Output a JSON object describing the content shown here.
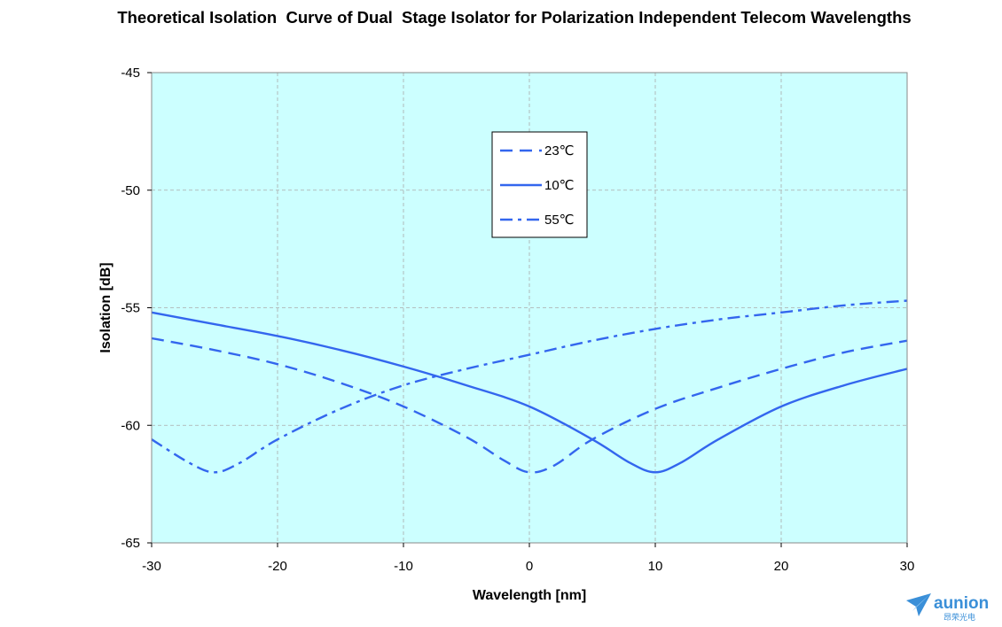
{
  "chart_data": {
    "type": "line",
    "title": "Theoretical Isolation  Curve of Dual  Stage Isolator for Polarization Independent Telecom Wavelengths",
    "xlabel": "Wavelength [nm]",
    "ylabel": "Isolation [dB]",
    "xlim": [
      -30,
      30
    ],
    "ylim": [
      -65,
      -45
    ],
    "xticks": [
      -30,
      -20,
      -10,
      0,
      10,
      20,
      30
    ],
    "yticks": [
      -45,
      -50,
      -55,
      -60,
      -65
    ],
    "grid": true,
    "plot_background": "#ccffff",
    "line_color": "#3366ee",
    "legend_position": "upper-center",
    "series": [
      {
        "name": "23℃",
        "style": "dashed",
        "x": [
          -30,
          -25,
          -20,
          -15,
          -10,
          -5,
          -2,
          0,
          2,
          5,
          10,
          15,
          20,
          25,
          30
        ],
        "y": [
          -56.3,
          -56.8,
          -57.4,
          -58.2,
          -59.2,
          -60.5,
          -61.5,
          -62.0,
          -61.7,
          -60.6,
          -59.3,
          -58.4,
          -57.6,
          -56.9,
          -56.4
        ]
      },
      {
        "name": "10℃",
        "style": "solid",
        "x": [
          -30,
          -25,
          -20,
          -15,
          -10,
          -5,
          0,
          5,
          8,
          10,
          12,
          15,
          20,
          25,
          30
        ],
        "y": [
          -55.2,
          -55.7,
          -56.2,
          -56.8,
          -57.5,
          -58.3,
          -59.2,
          -60.6,
          -61.6,
          -62.0,
          -61.6,
          -60.6,
          -59.2,
          -58.3,
          -57.6
        ]
      },
      {
        "name": "55℃",
        "style": "dash-dot",
        "x": [
          -30,
          -27,
          -25,
          -23,
          -20,
          -15,
          -10,
          -5,
          0,
          5,
          10,
          15,
          20,
          25,
          30
        ],
        "y": [
          -60.6,
          -61.6,
          -62.0,
          -61.6,
          -60.6,
          -59.3,
          -58.3,
          -57.6,
          -57.0,
          -56.4,
          -55.9,
          -55.5,
          -55.2,
          -54.9,
          -54.7
        ]
      }
    ]
  },
  "logo": {
    "name": "aunion",
    "subtitle": "昂荣光电"
  }
}
